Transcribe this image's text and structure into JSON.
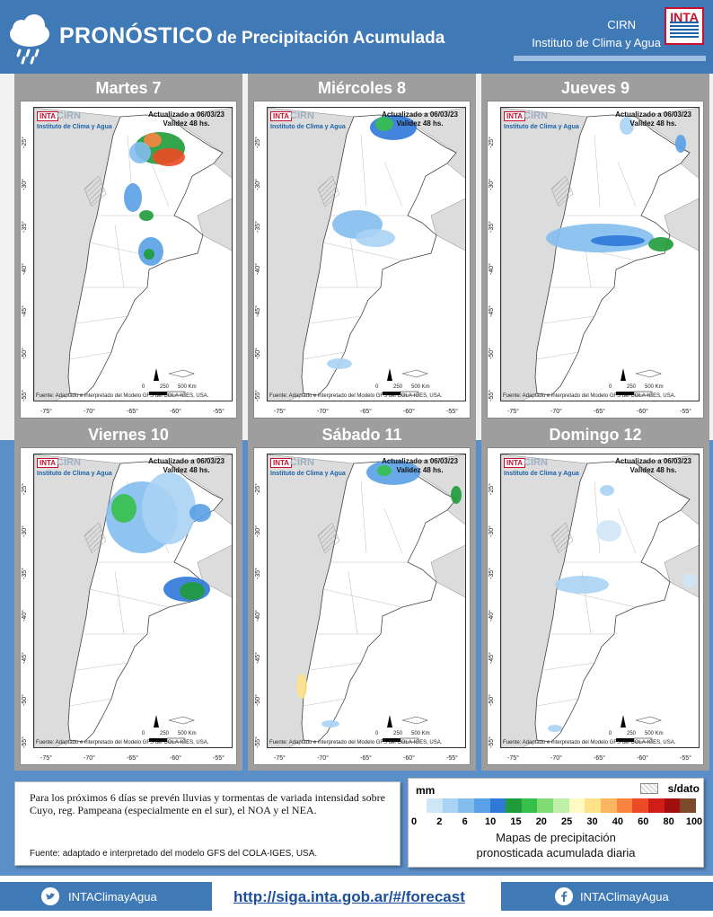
{
  "header": {
    "title_big": "PRONÓSTICO",
    "title_small": "de Precipitación Acumulada",
    "cirn": "CIRN",
    "institute": "Instituto de Clima y Agua",
    "logo_text": "INTA"
  },
  "map_common": {
    "logo": "INTA",
    "cirn": "CIRN",
    "institute": "Instituto de Clima y Agua",
    "updated": "Actualizado a 06/03/23",
    "validity": "Validez 48 hs.",
    "source": "Fuente: Adaptado e interpretado del Modelo GFS del COLA-IGES, USA.",
    "lat_ticks": [
      "-25°",
      "-30°",
      "-35°",
      "-40°",
      "-45°",
      "-50°",
      "-55°"
    ],
    "lon_ticks": [
      "-75°",
      "-70°",
      "-65°",
      "-60°",
      "-55°"
    ],
    "scale_0": "0",
    "scale_250": "250",
    "scale_500": "500 Km"
  },
  "panels": [
    {
      "day": "Martes 7"
    },
    {
      "day": "Miércoles 8"
    },
    {
      "day": "Jueves 9"
    },
    {
      "day": "Viernes 10"
    },
    {
      "day": "Sábado 11"
    },
    {
      "day": "Domingo 12"
    }
  ],
  "summary": {
    "text": "Para los próximos 6 días se prevén lluvias y tormentas de variada intensidad sobre Cuyo, reg. Pampeana (especialmente en el sur), el NOA y el NEA.",
    "source": "Fuente: adaptado e interpretado del modelo GFS del COLA-IGES, USA."
  },
  "legend": {
    "unit": "mm",
    "no_data": "s/dato",
    "ticks": [
      "0",
      "2",
      "6",
      "10",
      "15",
      "20",
      "25",
      "30",
      "40",
      "60",
      "80",
      "100"
    ],
    "colors": [
      "#cfe6f7",
      "#a9d3f4",
      "#83bdee",
      "#5aa0e6",
      "#2f78d8",
      "#1f9b3a",
      "#35c04a",
      "#7edc73",
      "#bff0a9",
      "#fffbc2",
      "#fde28a",
      "#fcb561",
      "#f8843f",
      "#ec4b25",
      "#d11d18",
      "#a10e0e",
      "#7a4a2a"
    ],
    "caption_1": "Mapas de precipitación",
    "caption_2": "pronosticada acumulada diaria"
  },
  "footer": {
    "twitter": "INTAClimayAgua",
    "url": "http://siga.inta.gob.ar/#/forecast",
    "facebook": "INTAClimayAgua"
  }
}
